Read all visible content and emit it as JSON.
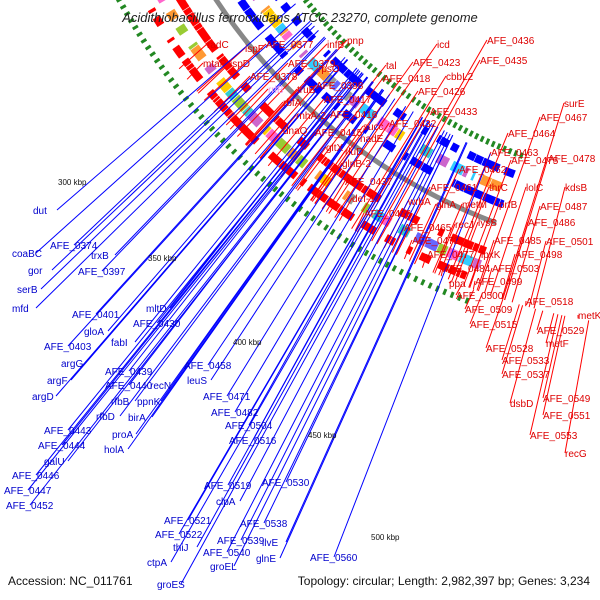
{
  "title": "Acidithiobacillus ferrooxidans ATCC 23270, complete genome",
  "footer": {
    "accession": "Accession: NC_011761",
    "summary": "Topology: circular; Length: 2,982,397 bp; Genes: 3,234"
  },
  "colors": {
    "forward_strand": "#ff0000",
    "reverse_strand": "#0000ff",
    "backbone": "#888888",
    "ticks": "#228822",
    "rrna": "#ee99ee"
  },
  "tick_labels": [
    "300 kbp",
    "350 kbp",
    "400 kbp",
    "450 kbp",
    "500 kbp"
  ],
  "forward_genes": [
    "radC",
    "mtaP",
    "ispF",
    "ispD",
    "AFE_0377",
    "AFE_0378",
    "AFE_0379",
    "infB",
    "pnp",
    "rrlB",
    "truB",
    "rpsO",
    "rbfA",
    "AFE_0398",
    "rnhA-2",
    "dnaQ",
    "AFE_0417",
    "AFE_0416",
    "AFE_0415",
    "tal",
    "AFE_0418",
    "icd",
    "AFE_0423",
    "AFE_0426",
    "cbbL2",
    "AFE_0436",
    "AFE_0435",
    "succ",
    "AFE_0433",
    "AFE_0432",
    "nadE",
    "gltX",
    "rluD",
    "glnB-2",
    "AFE_0437",
    "def-1",
    "AFE_0456",
    "surE",
    "AFE_0467",
    "AFE_0464",
    "AFE_0463",
    "AFE_0462",
    "AFE_0461",
    "wrbA",
    "glnA",
    "metM",
    "thrC",
    "lolC",
    "kdsB",
    "prfB",
    "AFE_0475",
    "AFE_0478",
    "AFE_0487",
    "AFE_0486",
    "recJ",
    "lysS",
    "AFE_0465",
    "AFE_0472",
    "AFE_0485",
    "AFE_0501",
    "AFE_0477",
    "lpxK",
    "AFE_0498",
    "AFE_0484",
    "AFE_0503",
    "ppa",
    "AFE_0499",
    "AFE_0500",
    "AFE_0509",
    "AFE_0518",
    "AFE_0515",
    "metK",
    "AFE_0529",
    "AFE_0528",
    "metF",
    "AFE_0533",
    "AFE_0537",
    "dsbD",
    "AFE_0549",
    "AFE_0551",
    "AFE_0553",
    "recG"
  ],
  "reverse_genes": [
    "dut",
    "coaBC",
    "AFE_0374",
    "gor",
    "trxB",
    "AFE_0397",
    "serB",
    "mfd",
    "AFE_0401",
    "mltD",
    "AFE_0430",
    "gloA",
    "fabI",
    "AFE_0403",
    "argG",
    "argF",
    "AFE_0439",
    "AFE_0458",
    "AFE_0440",
    "recN",
    "rfbB",
    "ppnK",
    "argD",
    "rfbD",
    "birA",
    "AFE_0443",
    "proA",
    "AFE_0444",
    "holA",
    "galU",
    "AFE_0446",
    "AFE_0447",
    "AFE_0452",
    "leuS",
    "AFE_0471",
    "AFE_0482",
    "AFE_0504",
    "AFE_0516",
    "AFE_0519",
    "AFE_0530",
    "clpA",
    "AFE_0521",
    "AFE_0522",
    "thiJ",
    "AFE_0538",
    "ctpA",
    "AFE_0539",
    "AFE_0540",
    "ilvE",
    "groEL",
    "glnE",
    "groES",
    "AFE_0560"
  ]
}
